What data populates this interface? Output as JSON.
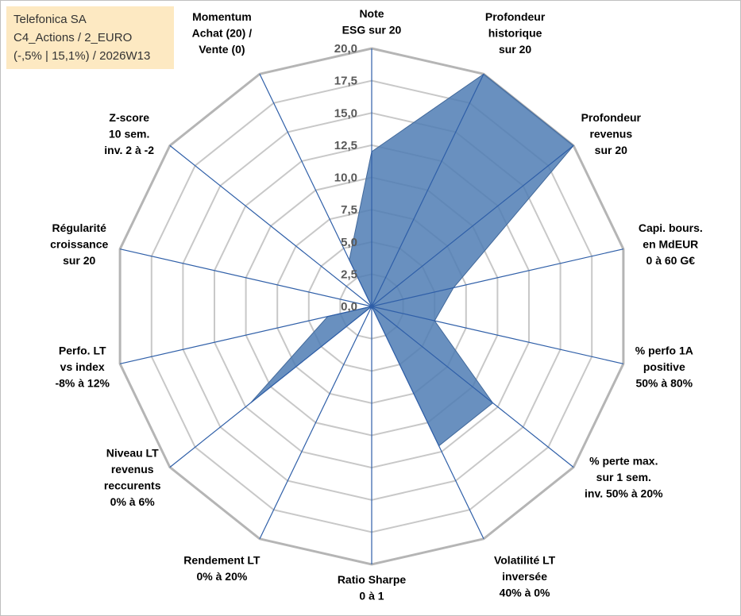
{
  "info_box": {
    "line1": "Telefonica SA",
    "line2": "C4_Actions / 2_EURO",
    "line3": "(-,5% | 15,1%) / 2026W13"
  },
  "colors": {
    "area_fill": "#4f7db4",
    "area_stroke": "#41689a",
    "spoke": "#2f5fa8",
    "grid": "#c8c8c8",
    "outer_grid": "#b5b5b5",
    "info_bg": "#fde9c2"
  },
  "chart_data": {
    "type": "radar",
    "rmax": 20,
    "tick_step": 2.5,
    "tick_labels": [
      "0,0",
      "2,5",
      "5,0",
      "7,5",
      "10,0",
      "12,5",
      "15,0",
      "17,5",
      "20,0"
    ],
    "grid": true,
    "legend": "none",
    "axes": [
      {
        "lines": [
          "Note",
          "ESG sur 20"
        ],
        "value": 12.0
      },
      {
        "lines": [
          "Profondeur",
          "historique",
          "sur 20"
        ],
        "value": 20.0
      },
      {
        "lines": [
          "Profondeur",
          "revenus",
          "sur 20"
        ],
        "value": 20.0
      },
      {
        "lines": [
          "Capi. bours.",
          "en MdEUR",
          "0 à 60 G€"
        ],
        "value": 6.5
      },
      {
        "lines": [
          "% perfo 1A",
          "positive",
          "50% à 80%"
        ],
        "value": 5.0
      },
      {
        "lines": [
          "% perte max.",
          "sur 1 sem.",
          "inv. 50% à 20%"
        ],
        "value": 12.0
      },
      {
        "lines": [
          "Volatilité LT",
          "inversée",
          "40% à 0%"
        ],
        "value": 12.0
      },
      {
        "lines": [
          "Ratio Sharpe",
          "0 à 1"
        ],
        "value": 0.0
      },
      {
        "lines": [
          "Rendement LT",
          "0% à 20%"
        ],
        "value": 0.0
      },
      {
        "lines": [
          "Niveau LT",
          "revenus",
          "reccurents",
          "0% à 6%"
        ],
        "value": 12.0
      },
      {
        "lines": [
          "Perfo. LT",
          "vs index",
          "-8% à 12%"
        ],
        "value": 3.5
      },
      {
        "lines": [
          "Régularité",
          "croissance",
          "sur 20"
        ],
        "value": 0.0
      },
      {
        "lines": [
          "Z-score",
          "10 sem.",
          "inv. 2 à -2"
        ],
        "value": 0.0
      },
      {
        "lines": [
          "Momentum",
          "Achat (20) /",
          "Vente (0)"
        ],
        "value": 4.0
      }
    ]
  }
}
